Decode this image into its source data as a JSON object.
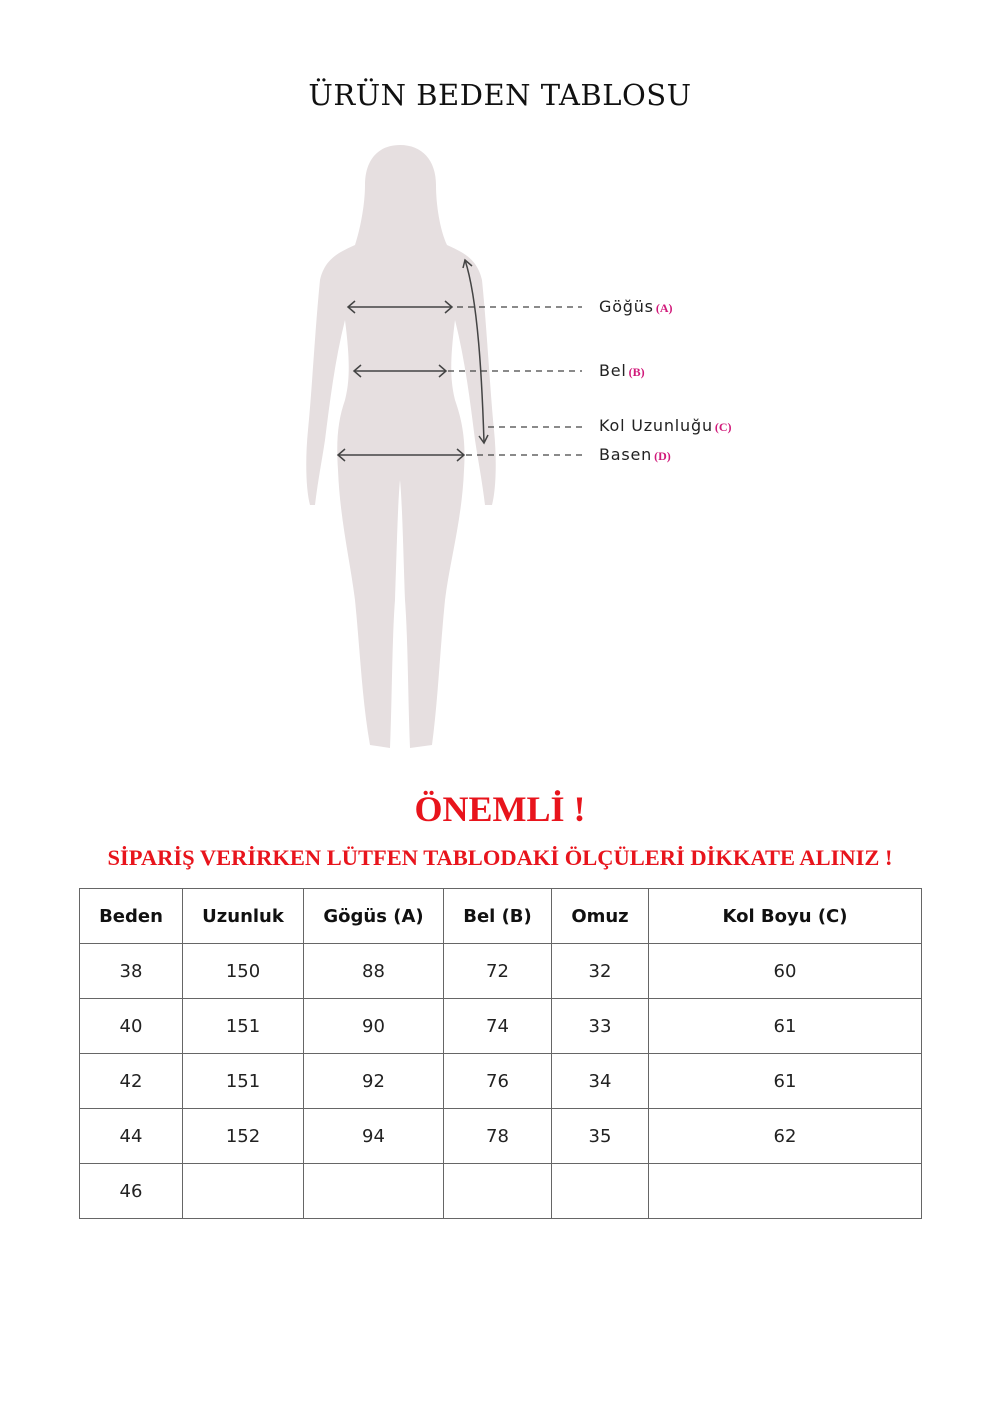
{
  "title": "ÜRÜN BEDEN TABLOSU",
  "figure": {
    "labels": [
      {
        "text": "Göğüs",
        "tag": "(A)"
      },
      {
        "text": "Bel",
        "tag": "(B)"
      },
      {
        "text": "Kol Uzunluğu",
        "tag": "(C)"
      },
      {
        "text": "Basen",
        "tag": "(D)"
      }
    ],
    "colors": {
      "silhouette": "#e6dfe0",
      "tag": "#d1197a"
    }
  },
  "important": "ÖNEMLİ !",
  "notice": "SİPARİŞ VERİRKEN LÜTFEN TABLODAKİ ÖLÇÜLERİ DİKKATE ALINIZ !",
  "notice_color": "#e8141c",
  "table": {
    "headers": [
      "Beden",
      "Uzunluk",
      "Gögüs (A)",
      "Bel (B)",
      "Omuz",
      "Kol Boyu (C)"
    ],
    "rows": [
      [
        "38",
        "150",
        "88",
        "72",
        "32",
        "60"
      ],
      [
        "40",
        "151",
        "90",
        "74",
        "33",
        "61"
      ],
      [
        "42",
        "151",
        "92",
        "76",
        "34",
        "61"
      ],
      [
        "44",
        "152",
        "94",
        "78",
        "35",
        "62"
      ],
      [
        "46",
        "",
        "",
        "",
        "",
        ""
      ]
    ]
  }
}
